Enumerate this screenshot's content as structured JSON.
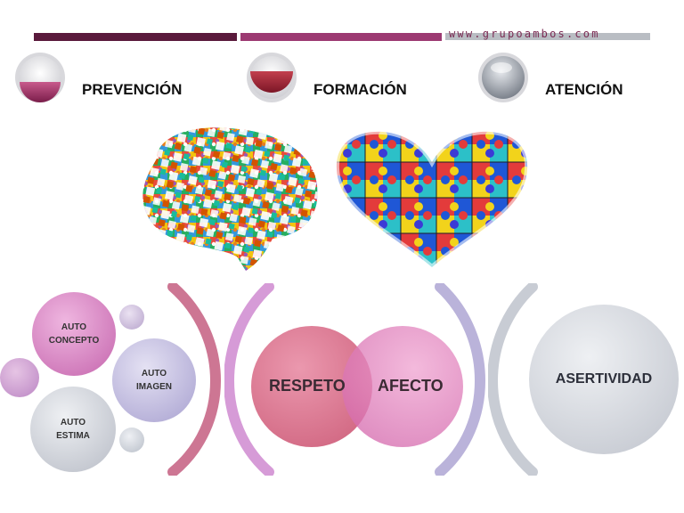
{
  "header": {
    "website": "www.grupoambos.com"
  },
  "categories": [
    {
      "label": "PREVENCIÓN",
      "icon": "wine-gauge-icon"
    },
    {
      "label": "FORMACIÓN",
      "icon": "red-gauge-icon"
    },
    {
      "label": "ATENCIÓN",
      "icon": "silver-gauge-icon"
    }
  ],
  "illustrations": {
    "brain": "puzzle-brain-image",
    "heart": "puzzle-heart-image"
  },
  "self": {
    "concepto": [
      "AUTO",
      "CONCEPTO"
    ],
    "imagen": [
      "AUTO",
      "IMAGEN"
    ],
    "estima": [
      "AUTO",
      "ESTIMA"
    ]
  },
  "venn": {
    "left": "RESPETO",
    "right": "AFECTO"
  },
  "result": "ASERTIVIDAD",
  "colors": {
    "plum": "#5a1a3c",
    "magenta": "#a33e78",
    "grey": "#b9bdc3",
    "pink": "#d97fb8",
    "lavender": "#b8b1d9",
    "silver": "#c9ccd4"
  }
}
